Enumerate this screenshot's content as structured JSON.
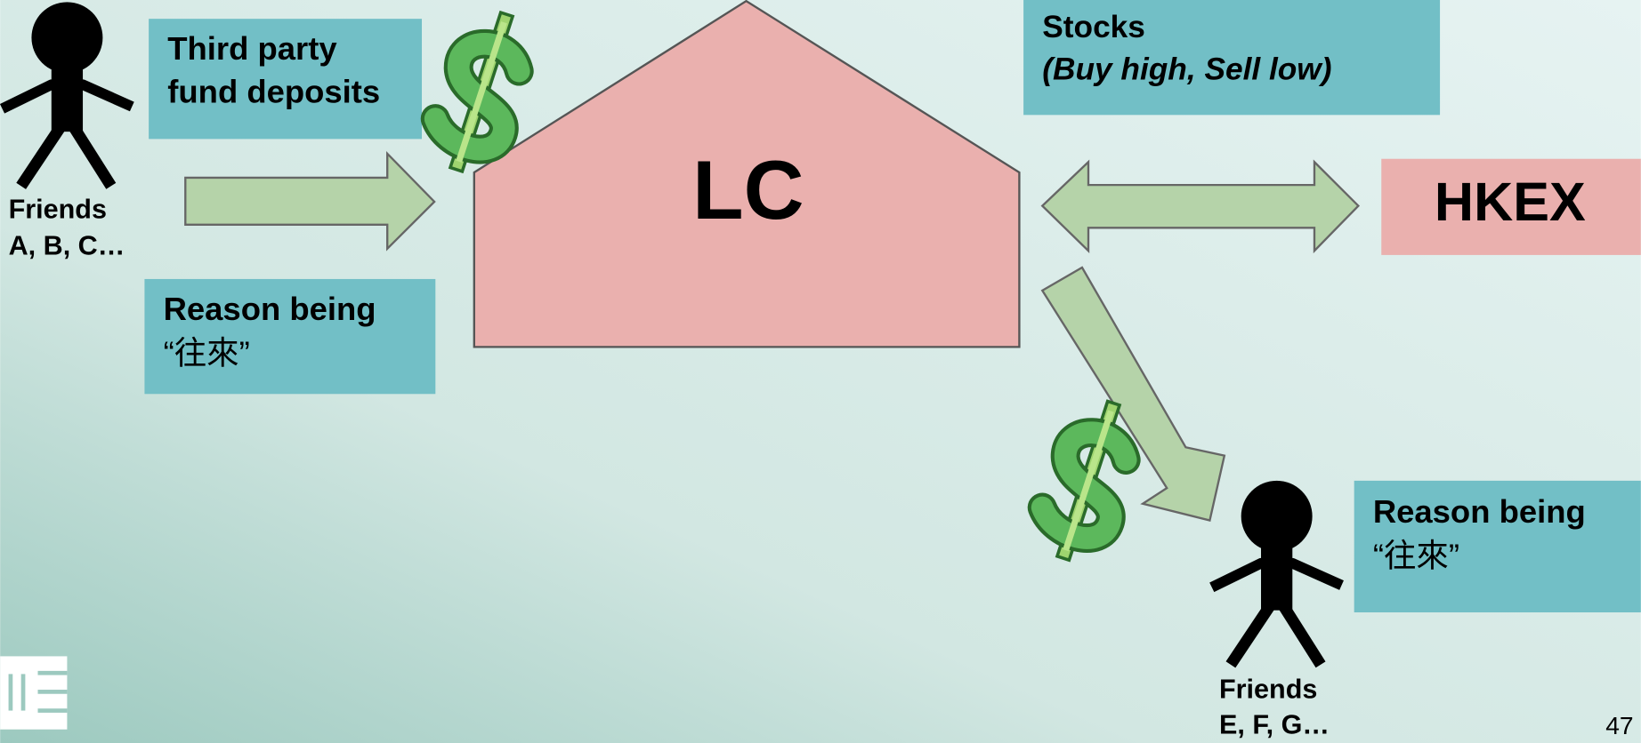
{
  "friends_left": {
    "lines": [
      "Friends",
      "A, B, C…"
    ]
  },
  "deposit_box": {
    "lines": [
      "Third party",
      "fund deposits"
    ]
  },
  "reason_left": {
    "lines": [
      "Reason being",
      "“往來”"
    ]
  },
  "lc": {
    "label": "LC"
  },
  "stocks_box": {
    "lines": [
      "Stocks",
      "(Buy high, Sell low)"
    ]
  },
  "hkex": {
    "label": "HKEX"
  },
  "reason_right": {
    "lines": [
      "Reason being",
      "“往來”"
    ]
  },
  "friends_right": {
    "lines": [
      "Friends",
      "E, F, G…"
    ]
  },
  "page_number": "47"
}
